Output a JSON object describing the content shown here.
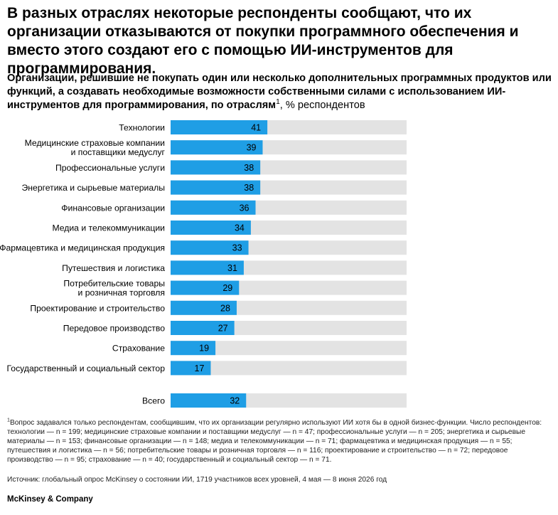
{
  "header": {
    "title": "В разных отраслях некоторые респонденты сообщают, что их организации отказываются от покупки программного обеспечения и вместо этого создают его с помощью ИИ-инструментов для программирования.",
    "subtitle_main": "Организации, решившие не покупать один или несколько дополнительных программных продуктов или функций, а создавать необходимые возможности собственными силами с использованием ИИ-инструментов для программирования, по отраслям",
    "subtitle_sup": "1",
    "subtitle_unit": ", % респондентов"
  },
  "chart_data": {
    "type": "bar",
    "orientation": "horizontal",
    "categories": [
      [
        "Технологии"
      ],
      [
        "Медицинские страховые компании",
        "и поставщики медуслуг"
      ],
      [
        "Профессиональные услуги"
      ],
      [
        "Энергетика и сырьевые материалы"
      ],
      [
        "Финансовые организации"
      ],
      [
        "Медиа и телекоммуникации"
      ],
      [
        "Фармацевтика и медицинская продукция"
      ],
      [
        "Путешествия и логистика"
      ],
      [
        "Потребительские товары",
        "и розничная торговля"
      ],
      [
        "Проектирование и строительство"
      ],
      [
        "Передовое производство"
      ],
      [
        "Страхование"
      ],
      [
        "Государственный и социальный сектор"
      ]
    ],
    "values": [
      41,
      39,
      38,
      38,
      36,
      34,
      33,
      31,
      29,
      28,
      27,
      19,
      17
    ],
    "total": {
      "label": "Всего",
      "value": 32
    },
    "xlim": [
      0,
      100
    ],
    "colors": {
      "bar": "#1f9ee5",
      "track": "#e3e3e3",
      "label": "#000000"
    }
  },
  "footnote": {
    "sup": "1",
    "text": "Вопрос задавался только респондентам, сообщившим, что их организации регулярно используют ИИ хотя бы в одной бизнес-функции. Число респондентов: технологии — n = 199; медицинские страховые компании и поставщики медуслуг — n = 47; профессиональные услуги — n = 205; энергетика и сырьевые материалы — n = 153; финансовые организации — n = 148; медиа и телекоммуникации — n = 71; фармацевтика и медицинская продукция — n = 55; путешествия и логистика — n = 56; потребительские товары и розничная торговля — n = 116; проектирование и строительство — n = 72; передовое производство — n = 95; страхование — n = 40; государственный и социальный сектор — n = 71."
  },
  "source": "Источник: глобальный опрос McKinsey о состоянии ИИ, 1719 участников всех уровней, 4 мая — 8 июня 2026 год",
  "brand": "McKinsey & Company"
}
